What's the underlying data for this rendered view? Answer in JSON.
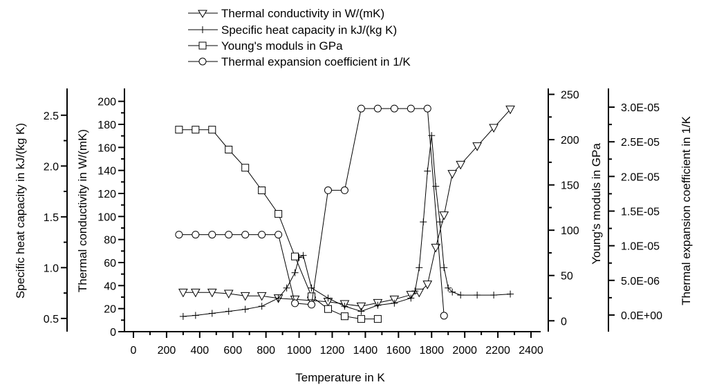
{
  "chart_data": {
    "type": "line",
    "xlabel": "Temperature in K",
    "xlim": [
      0,
      2400
    ],
    "x_ticks": [
      0,
      200,
      400,
      600,
      800,
      1000,
      1200,
      1400,
      1600,
      1800,
      2000,
      2200,
      2400
    ],
    "axes": {
      "specific_heat": {
        "label": "Specific heat capacity in kJ/(kg K)",
        "ylim": [
          0.37,
          2.75
        ],
        "ticks": [
          "0.5",
          "1.0",
          "1.5",
          "2.0",
          "2.5"
        ],
        "tick_values": [
          0.5,
          1.0,
          1.5,
          2.0,
          2.5
        ]
      },
      "thermal_conductivity": {
        "label": "Thermal conductivity in W/(mK)",
        "ylim": [
          0,
          210
        ],
        "ticks": [
          "0",
          "20",
          "40",
          "60",
          "80",
          "100",
          "120",
          "140",
          "160",
          "180",
          "200"
        ],
        "tick_values": [
          0,
          20,
          40,
          60,
          80,
          100,
          120,
          140,
          160,
          180,
          200
        ]
      },
      "youngs_modulus": {
        "label": "Young's moduls in GPa",
        "ylim": [
          -12,
          255
        ],
        "ticks": [
          "0",
          "50",
          "100",
          "150",
          "200",
          "250"
        ],
        "tick_values": [
          0,
          50,
          100,
          150,
          200,
          250
        ]
      },
      "thermal_expansion": {
        "label": "Thermal expansion coefficient in 1/K",
        "ylim": [
          -2.4e-06,
          3.25e-05
        ],
        "ticks": [
          "0.0E+00",
          "5.0E-06",
          "1.0E-05",
          "1.5E-05",
          "2.0E-05",
          "2.5E-05",
          "3.0E-05"
        ],
        "tick_values": [
          0,
          5e-06,
          1e-05,
          1.5e-05,
          2e-05,
          2.5e-05,
          3e-05
        ]
      }
    },
    "series": [
      {
        "name": "Thermal conductivity in W/(mK)",
        "legend": "Thermal conductivity in W/(mK)",
        "axis": "thermal_conductivity",
        "marker": "triangle-down",
        "x": [
          300,
          375,
          475,
          575,
          675,
          775,
          875,
          975,
          1075,
          1175,
          1275,
          1375,
          1475,
          1575,
          1675,
          1725,
          1775,
          1825,
          1875,
          1925,
          1975,
          2075,
          2175,
          2275
        ],
        "y": [
          34,
          34,
          34,
          33,
          31,
          31,
          29,
          28,
          27,
          26,
          24,
          22,
          25,
          28,
          32,
          34,
          41,
          73,
          101,
          137,
          145,
          161,
          177,
          193
        ]
      },
      {
        "name": "Specific heat capacity in kJ/(kg K)",
        "legend": "Specific heat capacity in kJ/(kg K)",
        "axis": "specific_heat",
        "marker": "plus",
        "x": [
          300,
          375,
          475,
          575,
          675,
          775,
          875,
          925,
          975,
          1000,
          1025,
          1075,
          1175,
          1275,
          1375,
          1475,
          1575,
          1675,
          1700,
          1725,
          1750,
          1775,
          1800,
          1825,
          1850,
          1875,
          1900,
          1925,
          1975,
          2075,
          2175,
          2275
        ],
        "y": [
          0.52,
          0.53,
          0.55,
          0.57,
          0.59,
          0.62,
          0.7,
          0.8,
          0.95,
          1.1,
          1.12,
          0.8,
          0.7,
          0.62,
          0.57,
          0.63,
          0.65,
          0.7,
          0.77,
          1.0,
          1.45,
          1.95,
          2.3,
          1.8,
          1.45,
          1.0,
          0.8,
          0.76,
          0.73,
          0.73,
          0.73,
          0.74
        ]
      },
      {
        "name": "Young's moduls in GPa",
        "legend": "Young's moduls in GPa",
        "axis": "youngs_modulus",
        "marker": "square",
        "x": [
          275,
          375,
          475,
          575,
          675,
          775,
          875,
          975,
          1075,
          1175,
          1275,
          1375,
          1475
        ],
        "y": [
          211,
          211,
          211,
          189,
          169,
          144,
          118,
          71,
          27,
          13,
          5,
          2,
          2
        ]
      },
      {
        "name": "Thermal expansion coefficient in 1/K",
        "legend": "Thermal expansion coefficient in 1/K",
        "axis": "thermal_expansion",
        "marker": "circle",
        "x": [
          275,
          375,
          475,
          575,
          675,
          775,
          875,
          975,
          1075,
          1175,
          1275,
          1375,
          1475,
          1575,
          1675,
          1775,
          1875
        ],
        "y": [
          1.16e-05,
          1.16e-05,
          1.16e-05,
          1.16e-05,
          1.16e-05,
          1.16e-05,
          1.16e-05,
          1.7e-06,
          1.5e-06,
          1.8e-05,
          1.8e-05,
          2.98e-05,
          2.98e-05,
          2.98e-05,
          2.98e-05,
          2.98e-05,
          -1e-07
        ]
      }
    ]
  }
}
